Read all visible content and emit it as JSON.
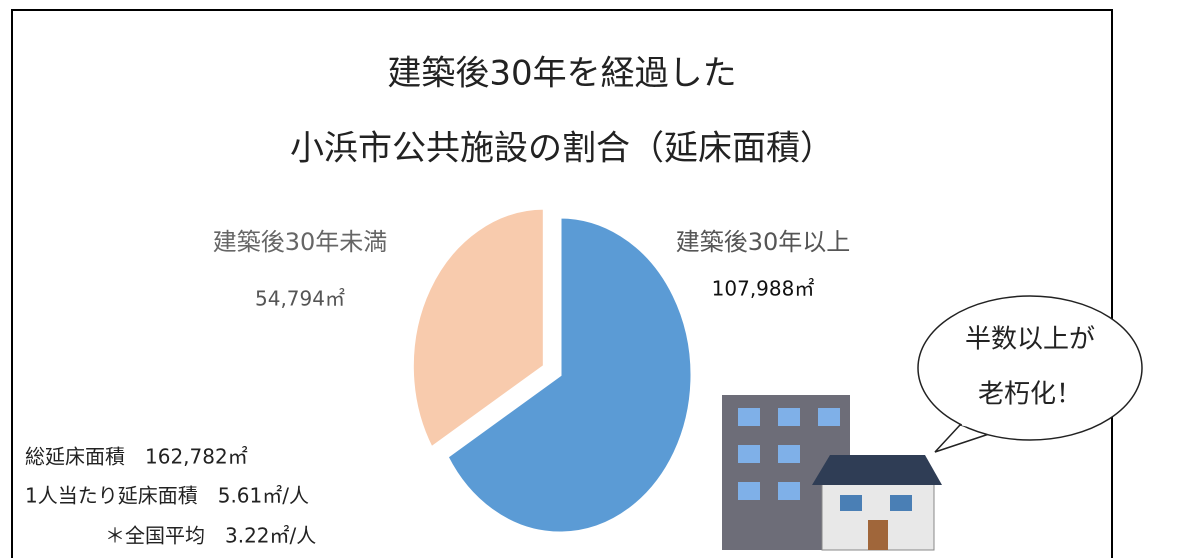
{
  "chart_data": {
    "type": "pie",
    "title": "建築後30年を経過した",
    "subtitle": "小浜市公共施設の割合（延床面積）",
    "categories": [
      "建築後30年以上",
      "建築後30年未満"
    ],
    "values": [
      107988,
      54794
    ],
    "value_labels": [
      "107,988㎡",
      "54,794㎡"
    ],
    "colors": [
      "#5b9bd5",
      "#f8cbad"
    ],
    "annotations": [
      "総延床面積　162,782㎡",
      "1人当たり延床面積　5.61㎡/人",
      "＊全国平均　3.22㎡/人"
    ],
    "callout": [
      "半数以上が",
      "老朽化！"
    ]
  }
}
